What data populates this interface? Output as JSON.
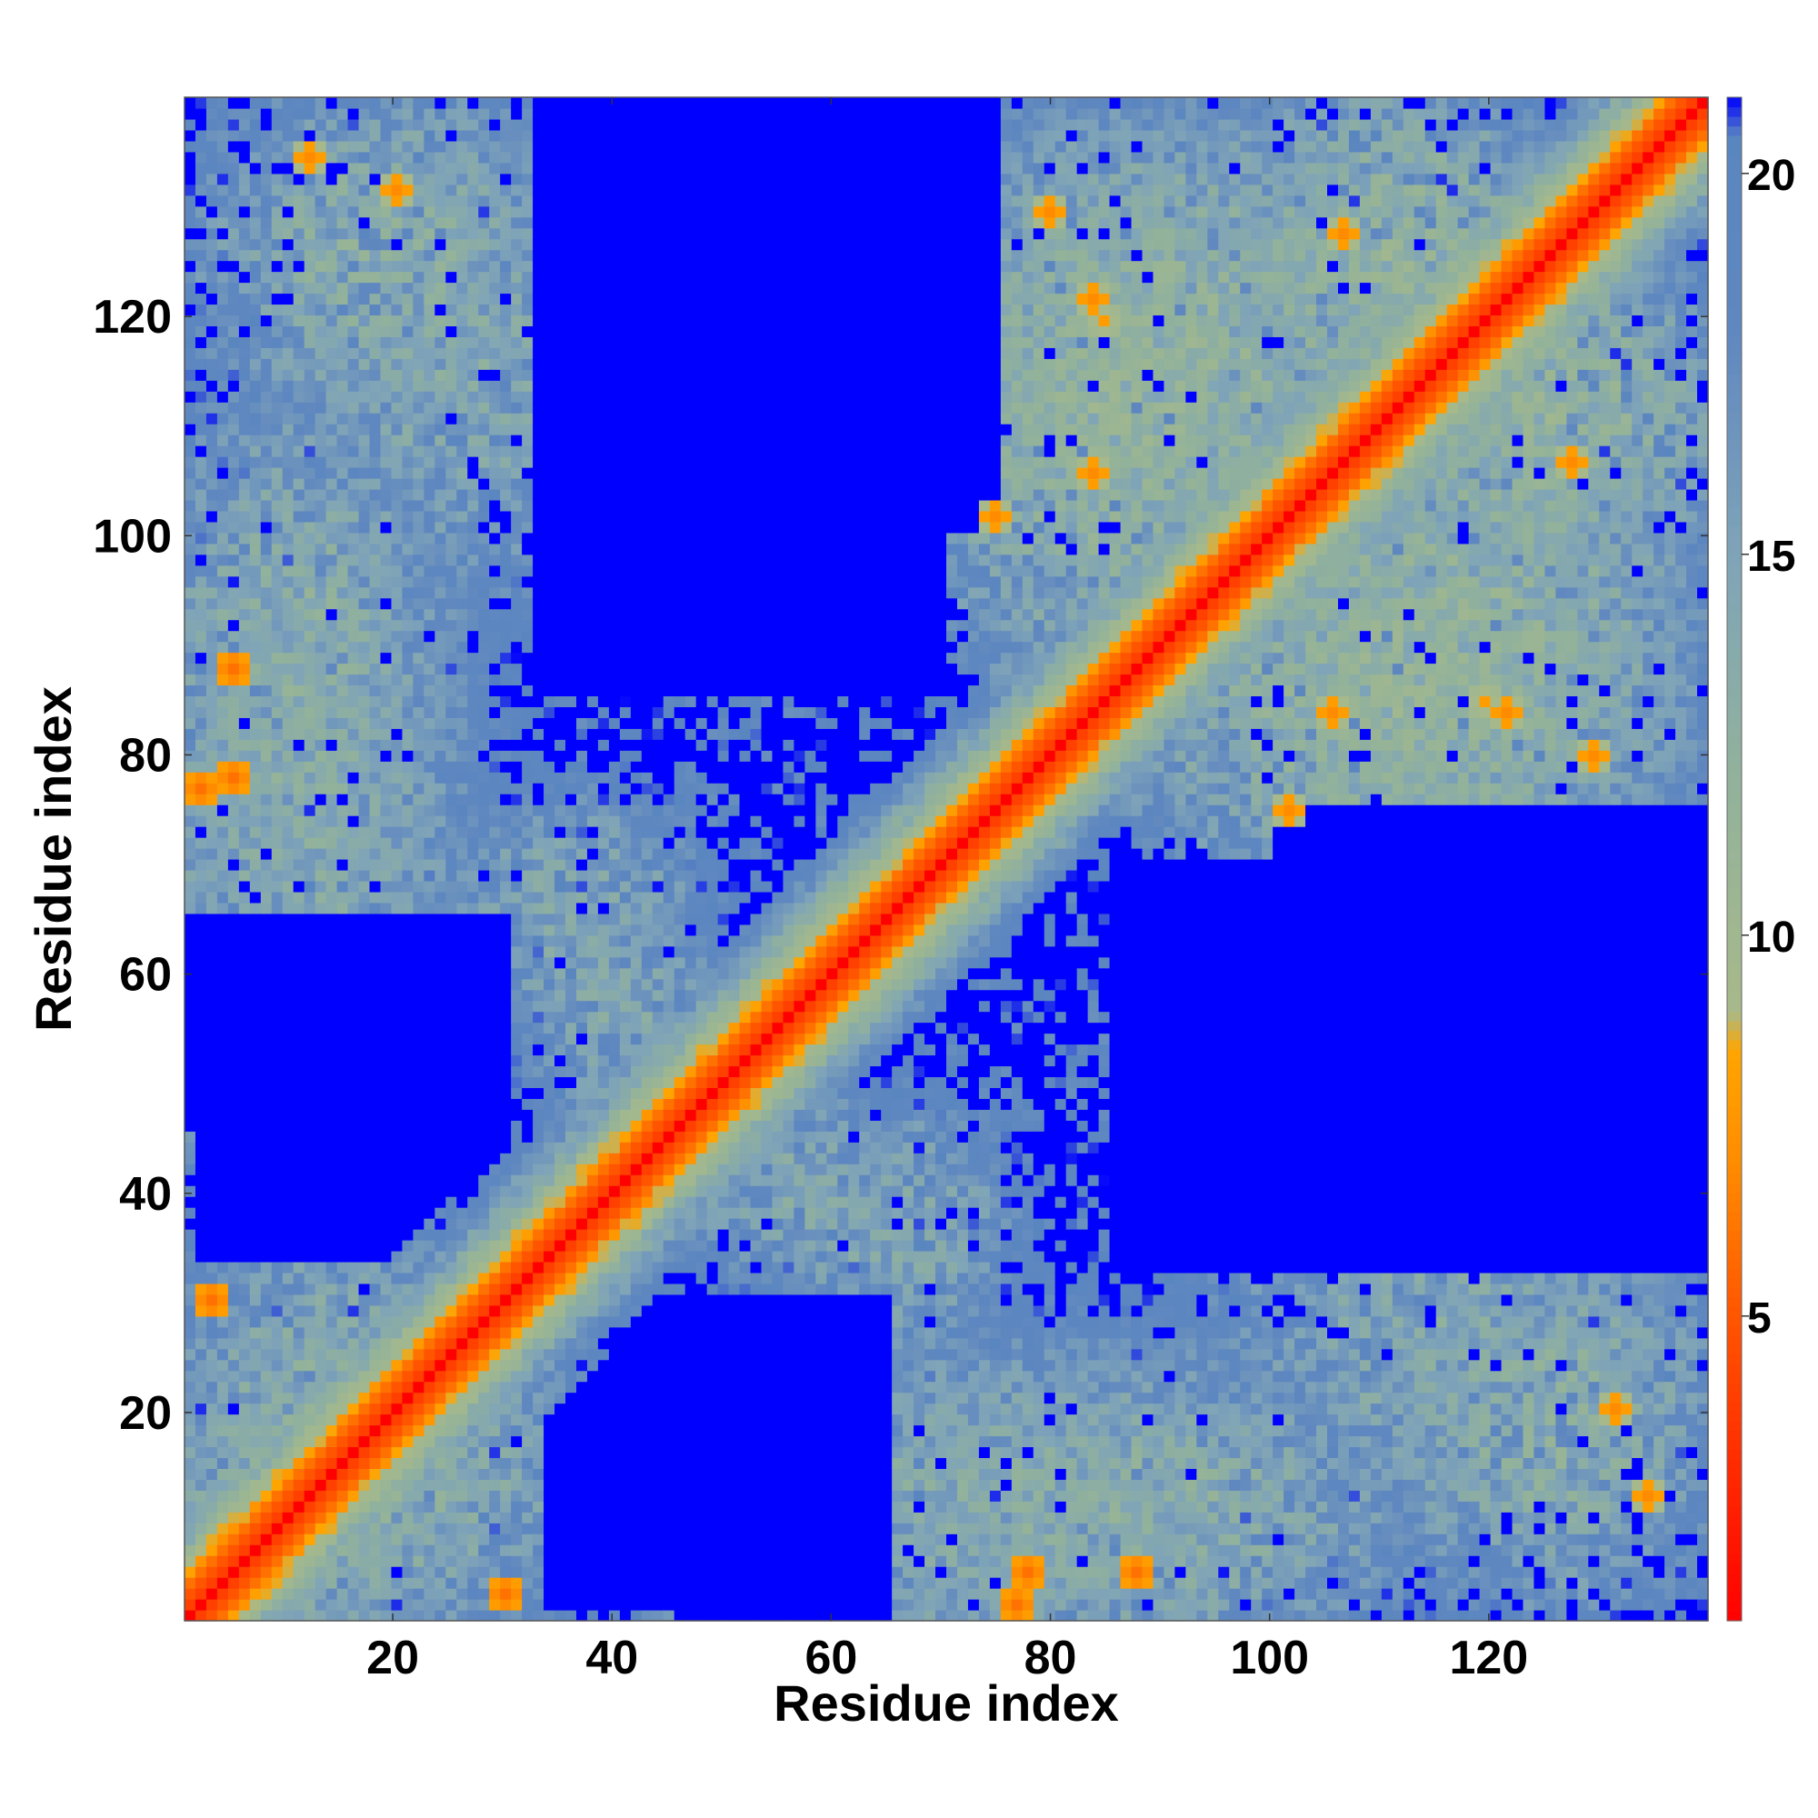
{
  "chart_data": {
    "type": "heatmap",
    "title": "",
    "xlabel": "Residue index",
    "ylabel": "Residue index",
    "n_residues": 140,
    "xlim": [
      1,
      140
    ],
    "ylim": [
      1,
      140
    ],
    "x_ticks": [
      20,
      40,
      60,
      80,
      100,
      120
    ],
    "y_ticks": [
      20,
      40,
      60,
      80,
      100,
      120
    ],
    "colorbar": {
      "range": [
        1,
        21
      ],
      "ticks": [
        5,
        10,
        15,
        20
      ],
      "stops": [
        {
          "value": 1,
          "color": "#ff0000"
        },
        {
          "value": 3,
          "color": "#ff2a00"
        },
        {
          "value": 5,
          "color": "#ff5500"
        },
        {
          "value": 7,
          "color": "#ff8c00"
        },
        {
          "value": 8.5,
          "color": "#ffa500"
        },
        {
          "value": 9,
          "color": "#a7b98a"
        },
        {
          "value": 12,
          "color": "#92b29b"
        },
        {
          "value": 15,
          "color": "#7fa4b8"
        },
        {
          "value": 18,
          "color": "#5f87c0"
        },
        {
          "value": 20.5,
          "color": "#5a86c0"
        },
        {
          "value": 21,
          "color": "#0000ff"
        }
      ]
    },
    "description_of_pattern": "Symmetric residue-residue distance map (Å); red diagonal (<5), orange/green contacts near diagonal and off-diagonal helix-helix patches, blue (>20) elsewhere.",
    "secondary_contacts": [
      {
        "i": 5,
        "j": 78,
        "d": 6
      },
      {
        "i": 5,
        "j": 88,
        "d": 6
      },
      {
        "i": 3,
        "j": 30,
        "d": 6
      },
      {
        "i": 20,
        "j": 132,
        "d": 7
      },
      {
        "i": 12,
        "j": 135,
        "d": 7
      },
      {
        "i": 84,
        "j": 122,
        "d": 7
      },
      {
        "i": 85,
        "j": 120,
        "d": 8
      },
      {
        "i": 107,
        "j": 128,
        "d": 7
      },
      {
        "i": 77,
        "j": 2,
        "d": 6
      },
      {
        "i": 84,
        "j": 106,
        "d": 7
      },
      {
        "i": 75,
        "j": 102,
        "d": 7
      },
      {
        "i": 80,
        "j": 130,
        "d": 7
      }
    ],
    "blue_regions": [
      {
        "x": [
          32,
          60
        ],
        "y": [
          85,
          140
        ]
      },
      {
        "x": [
          85,
          140
        ],
        "y": [
          35,
          70
        ]
      },
      {
        "x": [
          0,
          30
        ],
        "y": [
          45,
          65
        ]
      },
      {
        "x": [
          33,
          62
        ],
        "y": [
          1,
          30
        ]
      },
      {
        "x": [
          100,
          140
        ],
        "y": [
          60,
          75
        ]
      }
    ]
  }
}
